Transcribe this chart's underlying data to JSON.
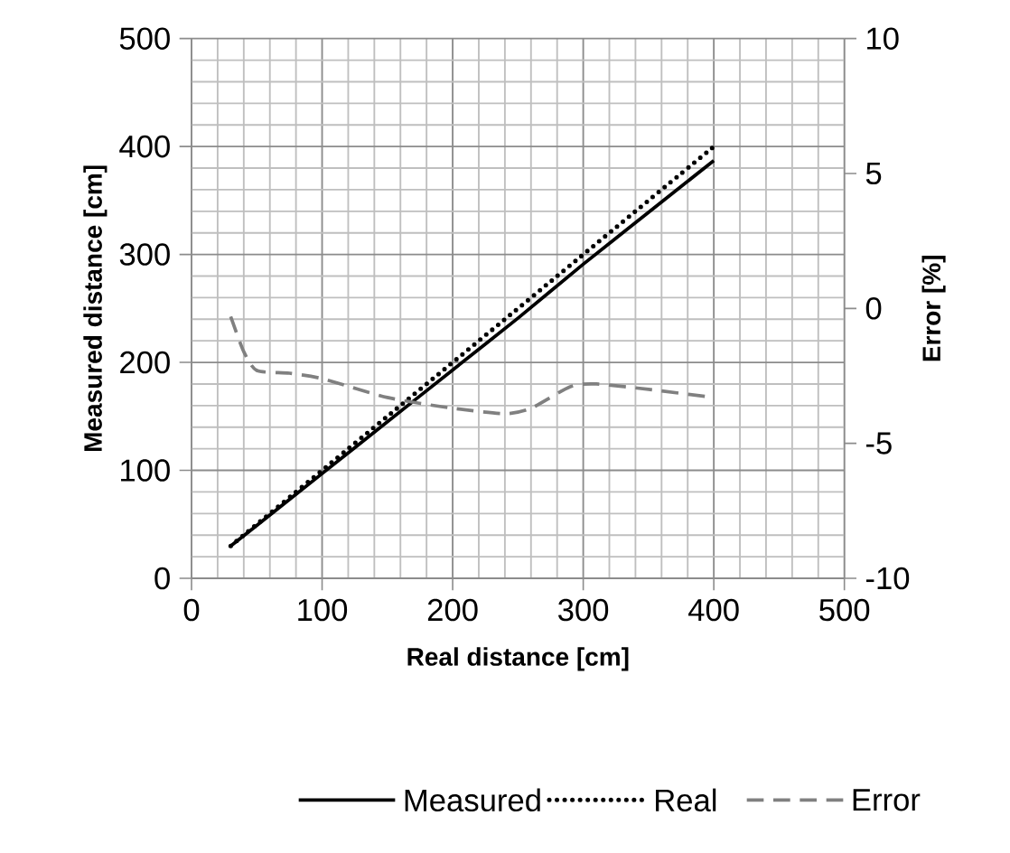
{
  "chart_data": {
    "type": "line",
    "xlabel": "Real distance [cm]",
    "ylabel": "Measured distance [cm]",
    "y2label": "Error [%]",
    "xlim": [
      0,
      500
    ],
    "xticks": [
      0,
      100,
      200,
      300,
      400,
      500
    ],
    "ylim": [
      0,
      500
    ],
    "yticks": [
      0,
      100,
      200,
      300,
      400,
      500
    ],
    "y2lim": [
      -10,
      10
    ],
    "y2ticks": [
      -10,
      -5,
      0,
      5,
      10
    ],
    "grid": true,
    "legend": "bottom",
    "series": [
      {
        "name": "Measured",
        "color": "#000000",
        "line_style": "solid",
        "x": [
          30,
          50,
          100,
          150,
          200,
          250,
          300,
          350,
          400
        ],
        "values": [
          30,
          49,
          97,
          145,
          193,
          241,
          291,
          339,
          387
        ]
      },
      {
        "name": "Real",
        "color": "#000000",
        "line_style": "dotted",
        "x": [
          30,
          400
        ],
        "values": [
          30,
          400
        ]
      },
      {
        "name": "Error",
        "color": "#808080",
        "line_style": "dashed",
        "axis": "y2",
        "x": [
          30,
          40,
          50,
          75,
          100,
          150,
          200,
          240,
          260,
          290,
          310,
          350,
          400
        ],
        "values": [
          -0.3,
          -1.6,
          -2.3,
          -2.4,
          -2.6,
          -3.3,
          -3.7,
          -3.9,
          -3.7,
          -2.9,
          -2.8,
          -3.0,
          -3.3
        ]
      }
    ]
  }
}
